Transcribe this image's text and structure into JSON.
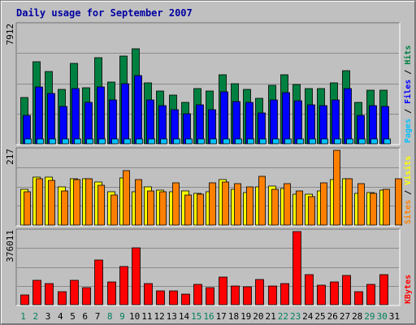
{
  "title": "Daily usage for September 2007",
  "colors": {
    "hits": "#008040",
    "files": "#0000ff",
    "pages": "#00c0ff",
    "visits": "#ffff00",
    "sites": "#ff8000",
    "kbytes": "#ff0000",
    "weekend_day": "#00805c",
    "weekday": "#000000",
    "title": "#0000a0"
  },
  "chart_data": [
    {
      "type": "bar",
      "ymax_label": "7912",
      "ylim": [
        0,
        7912
      ],
      "legend_placement": "right-vertical",
      "legend": [
        "Pages",
        "Files",
        "Hits"
      ],
      "categories": [
        "1",
        "2",
        "3",
        "4",
        "5",
        "6",
        "7",
        "8",
        "9",
        "10",
        "11",
        "12",
        "13",
        "14",
        "15",
        "16",
        "17",
        "18",
        "19",
        "20",
        "21",
        "22",
        "23",
        "24",
        "25",
        "26",
        "27",
        "28",
        "29",
        "30",
        "31"
      ],
      "series": [
        {
          "name": "Hits",
          "values": [
            3080,
            5470,
            4850,
            3630,
            5390,
            3730,
            5740,
            4100,
            5850,
            6330,
            4050,
            3510,
            3260,
            2790,
            3680,
            3500,
            4600,
            4000,
            3640,
            3040,
            3910,
            4600,
            3960,
            3680,
            3660,
            4070,
            4900,
            2790,
            3570,
            3560,
            0
          ]
        },
        {
          "name": "Files",
          "values": [
            1900,
            3810,
            3380,
            2510,
            3700,
            2750,
            3780,
            2900,
            3990,
            4540,
            2940,
            2520,
            2300,
            2000,
            2600,
            2260,
            3480,
            2840,
            2740,
            2080,
            2900,
            3400,
            2880,
            2600,
            2560,
            2910,
            3700,
            1920,
            2520,
            2500,
            0
          ]
        },
        {
          "name": "Pages",
          "values": [
            300,
            300,
            300,
            300,
            300,
            300,
            300,
            300,
            300,
            300,
            300,
            300,
            300,
            300,
            300,
            300,
            300,
            300,
            300,
            300,
            300,
            300,
            300,
            300,
            300,
            300,
            300,
            300,
            300,
            300,
            0
          ]
        }
      ]
    },
    {
      "type": "bar",
      "ymax_label": "217",
      "ylim": [
        0,
        217
      ],
      "legend_placement": "right-vertical",
      "legend": [
        "Sites",
        "Visits"
      ],
      "categories": [
        "1",
        "2",
        "3",
        "4",
        "5",
        "6",
        "7",
        "8",
        "9",
        "10",
        "11",
        "12",
        "13",
        "14",
        "15",
        "16",
        "17",
        "18",
        "19",
        "20",
        "21",
        "22",
        "23",
        "24",
        "25",
        "26",
        "27",
        "28",
        "29",
        "30",
        "31"
      ],
      "series": [
        {
          "name": "Visits",
          "values": [
            96,
            128,
            128,
            102,
            124,
            124,
            115,
            89,
            126,
            89,
            102,
            93,
            89,
            91,
            84,
            89,
            121,
            96,
            87,
            102,
            105,
            98,
            82,
            82,
            91,
            121,
            123,
            84,
            87,
            94,
            0
          ]
        },
        {
          "name": "Sites",
          "values": [
            89,
            124,
            119,
            91,
            121,
            123,
            107,
            80,
            145,
            121,
            91,
            89,
            114,
            80,
            82,
            114,
            116,
            110,
            103,
            131,
            96,
            110,
            91,
            77,
            114,
            200,
            124,
            110,
            84,
            96,
            124
          ]
        }
      ]
    },
    {
      "type": "bar",
      "ymax_label": "376011",
      "ylim": [
        0,
        376011
      ],
      "legend_placement": "right-vertical",
      "legend": [
        "KBytes"
      ],
      "categories": [
        "1",
        "2",
        "3",
        "4",
        "5",
        "6",
        "7",
        "8",
        "9",
        "10",
        "11",
        "12",
        "13",
        "14",
        "15",
        "16",
        "17",
        "18",
        "19",
        "20",
        "21",
        "22",
        "23",
        "24",
        "25",
        "26",
        "27",
        "28",
        "29",
        "30",
        "31"
      ],
      "series": [
        {
          "name": "KBytes",
          "values": [
            50000,
            125000,
            107000,
            66000,
            125000,
            87000,
            231000,
            115000,
            195000,
            291000,
            110000,
            71000,
            72000,
            54000,
            105000,
            88000,
            143000,
            97000,
            92000,
            130000,
            98000,
            108000,
            376000,
            154000,
            99000,
            118000,
            150000,
            65000,
            104000,
            155000,
            0
          ]
        }
      ]
    }
  ],
  "x_axis": {
    "labels": [
      "1",
      "2",
      "3",
      "4",
      "5",
      "6",
      "7",
      "8",
      "9",
      "10",
      "11",
      "12",
      "13",
      "14",
      "15",
      "16",
      "17",
      "18",
      "19",
      "20",
      "21",
      "22",
      "23",
      "24",
      "25",
      "26",
      "27",
      "28",
      "29",
      "30",
      "31"
    ],
    "weekend_days": [
      1,
      2,
      8,
      9,
      15,
      16,
      22,
      23,
      29,
      30
    ]
  }
}
